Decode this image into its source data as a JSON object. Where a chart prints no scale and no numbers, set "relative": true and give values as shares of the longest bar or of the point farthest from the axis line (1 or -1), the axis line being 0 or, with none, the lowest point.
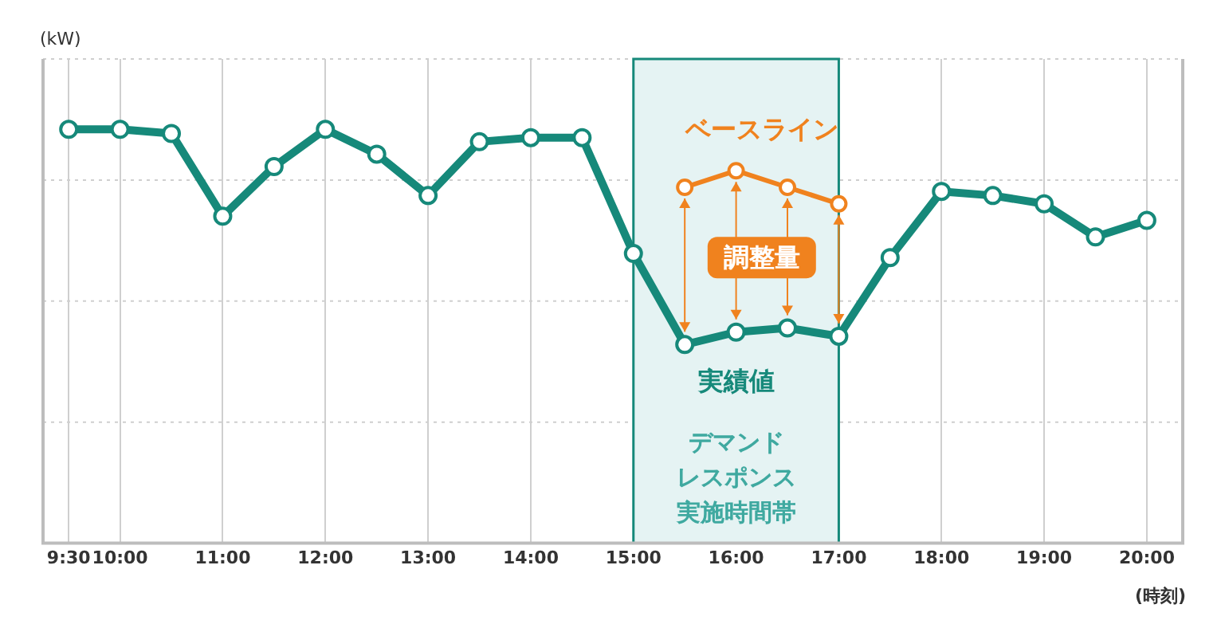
{
  "chart_data": {
    "type": "line",
    "ylabel": "(kW)",
    "xlabel": "(時刻)",
    "relative": true,
    "xlim": [
      9.25,
      20.35
    ],
    "xticks": [
      {
        "value": 9.5,
        "label": "9:30"
      },
      {
        "value": 10,
        "label": "10:00"
      },
      {
        "value": 11,
        "label": "11:00"
      },
      {
        "value": 12,
        "label": "12:00"
      },
      {
        "value": 13,
        "label": "13:00"
      },
      {
        "value": 14,
        "label": "14:00"
      },
      {
        "value": 15,
        "label": "15:00"
      },
      {
        "value": 16,
        "label": "16:00"
      },
      {
        "value": 17,
        "label": "17:00"
      },
      {
        "value": 18,
        "label": "18:00"
      },
      {
        "value": 19,
        "label": "19:00"
      },
      {
        "value": 20,
        "label": "20:00"
      }
    ],
    "x": [
      9.5,
      10,
      10.5,
      11,
      11.5,
      12,
      12.5,
      13,
      13.5,
      14,
      14.5,
      15,
      15.5,
      16,
      16.5,
      17,
      17.5,
      18,
      18.5,
      19,
      19.5,
      20
    ],
    "series": [
      {
        "name": "実績値",
        "color": "#16897a",
        "values": [
          1.0,
          1.0,
          0.99,
          0.79,
          0.91,
          1.0,
          0.94,
          0.84,
          0.97,
          0.98,
          0.98,
          0.7,
          0.48,
          0.51,
          0.52,
          0.5,
          0.69,
          0.85,
          0.84,
          0.82,
          0.74,
          0.78
        ]
      },
      {
        "name": "ベースライン",
        "color": "#f0821e",
        "x": [
          15.5,
          16,
          16.5,
          17
        ],
        "values": [
          0.86,
          0.9,
          0.86,
          0.82
        ]
      }
    ],
    "bands": [
      {
        "axis": "x",
        "from": 15,
        "to": 17,
        "label": "デマンドレスポンス実施時間帯",
        "color": "#e5f3f3"
      }
    ],
    "annotations": [
      "調整量"
    ],
    "grid": true,
    "marker": "circle",
    "line_style": "solid"
  }
}
